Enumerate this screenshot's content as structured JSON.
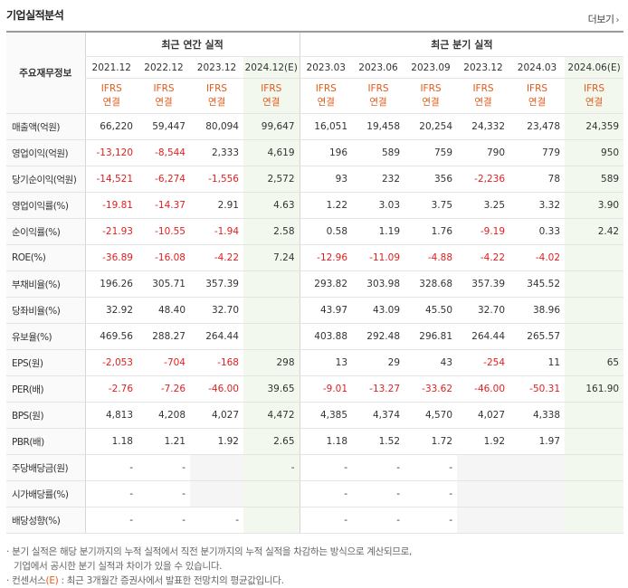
{
  "header": {
    "title": "기업실적분석",
    "more": "더보기"
  },
  "table": {
    "corner_label": "주요재무정보",
    "group_annual": "최근 연간 실적",
    "group_quarter": "최근 분기 실적",
    "periods": [
      "2021.12",
      "2022.12",
      "2023.12",
      "2024.12(E)",
      "2023.03",
      "2023.06",
      "2023.09",
      "2023.12",
      "2024.03",
      "2024.06(E)"
    ],
    "ifrs_top": "IFRS",
    "ifrs_bottom": "연결",
    "rows": [
      {
        "label": "매출액(억원)",
        "values": [
          "66,220",
          "59,447",
          "80,094",
          "99,647",
          "16,051",
          "19,458",
          "20,254",
          "24,332",
          "23,478",
          "24,359"
        ]
      },
      {
        "label": "영업이익(억원)",
        "values": [
          "-13,120",
          "-8,544",
          "2,333",
          "4,619",
          "196",
          "589",
          "759",
          "790",
          "779",
          "950"
        ]
      },
      {
        "label": "당기순이익(억원)",
        "values": [
          "-14,521",
          "-6,274",
          "-1,556",
          "2,572",
          "93",
          "232",
          "356",
          "-2,236",
          "78",
          "589"
        ]
      },
      {
        "label": "영업이익률(%)",
        "values": [
          "-19.81",
          "-14.37",
          "2.91",
          "4.63",
          "1.22",
          "3.03",
          "3.75",
          "3.25",
          "3.32",
          "3.90"
        ]
      },
      {
        "label": "순이익률(%)",
        "values": [
          "-21.93",
          "-10.55",
          "-1.94",
          "2.58",
          "0.58",
          "1.19",
          "1.76",
          "-9.19",
          "0.33",
          "2.42"
        ]
      },
      {
        "label": "ROE(%)",
        "values": [
          "-36.89",
          "-16.08",
          "-4.22",
          "7.24",
          "-12.96",
          "-11.09",
          "-4.88",
          "-4.22",
          "-4.02",
          ""
        ]
      },
      {
        "label": "부채비율(%)",
        "values": [
          "196.26",
          "305.71",
          "357.39",
          "",
          "293.82",
          "303.98",
          "328.68",
          "357.39",
          "345.52",
          ""
        ]
      },
      {
        "label": "당좌비율(%)",
        "values": [
          "32.92",
          "48.40",
          "32.70",
          "",
          "43.97",
          "43.09",
          "45.50",
          "32.70",
          "38.96",
          ""
        ]
      },
      {
        "label": "유보율(%)",
        "values": [
          "469.56",
          "288.27",
          "264.44",
          "",
          "403.88",
          "292.48",
          "296.81",
          "264.44",
          "265.57",
          ""
        ]
      },
      {
        "label": "EPS(원)",
        "values": [
          "-2,053",
          "-704",
          "-168",
          "298",
          "13",
          "29",
          "43",
          "-254",
          "11",
          "65"
        ]
      },
      {
        "label": "PER(배)",
        "values": [
          "-2.76",
          "-7.26",
          "-46.00",
          "39.65",
          "-9.01",
          "-13.27",
          "-33.62",
          "-46.00",
          "-50.31",
          "161.90"
        ]
      },
      {
        "label": "BPS(원)",
        "values": [
          "4,813",
          "4,208",
          "4,027",
          "4,472",
          "4,385",
          "4,374",
          "4,570",
          "4,027",
          "4,338",
          ""
        ]
      },
      {
        "label": "PBR(배)",
        "values": [
          "1.18",
          "1.21",
          "1.92",
          "2.65",
          "1.18",
          "1.52",
          "1.72",
          "1.92",
          "1.97",
          ""
        ]
      },
      {
        "label": "주당배당금(원)",
        "values": [
          "-",
          "-",
          "",
          "-",
          "-",
          "-",
          "-",
          "",
          "",
          ""
        ]
      },
      {
        "label": "시가배당률(%)",
        "values": [
          "-",
          "-",
          "",
          "",
          "-",
          "-",
          "-",
          "",
          "",
          ""
        ]
      },
      {
        "label": "배당성향(%)",
        "values": [
          "-",
          "-",
          "-",
          "",
          "-",
          "-",
          "-",
          "",
          "",
          ""
        ]
      }
    ]
  },
  "notes": {
    "line1_bullet": "·",
    "line1": "분기 실적은 해당 분기까지의 누적 실적에서 직전 분기까지의 누적 실적을 차감하는 방식으로 계산되므로,",
    "line2": "기업에서 공시한 분기 실적과 차이가 있을 수 있습니다.",
    "line3_bullet": "·",
    "line3_prefix": "컨센서스",
    "line3_e": "(E)",
    "line3_rest": ": 최근 3개월간 증권사에서 발표한 전망치의 평균값입니다."
  }
}
